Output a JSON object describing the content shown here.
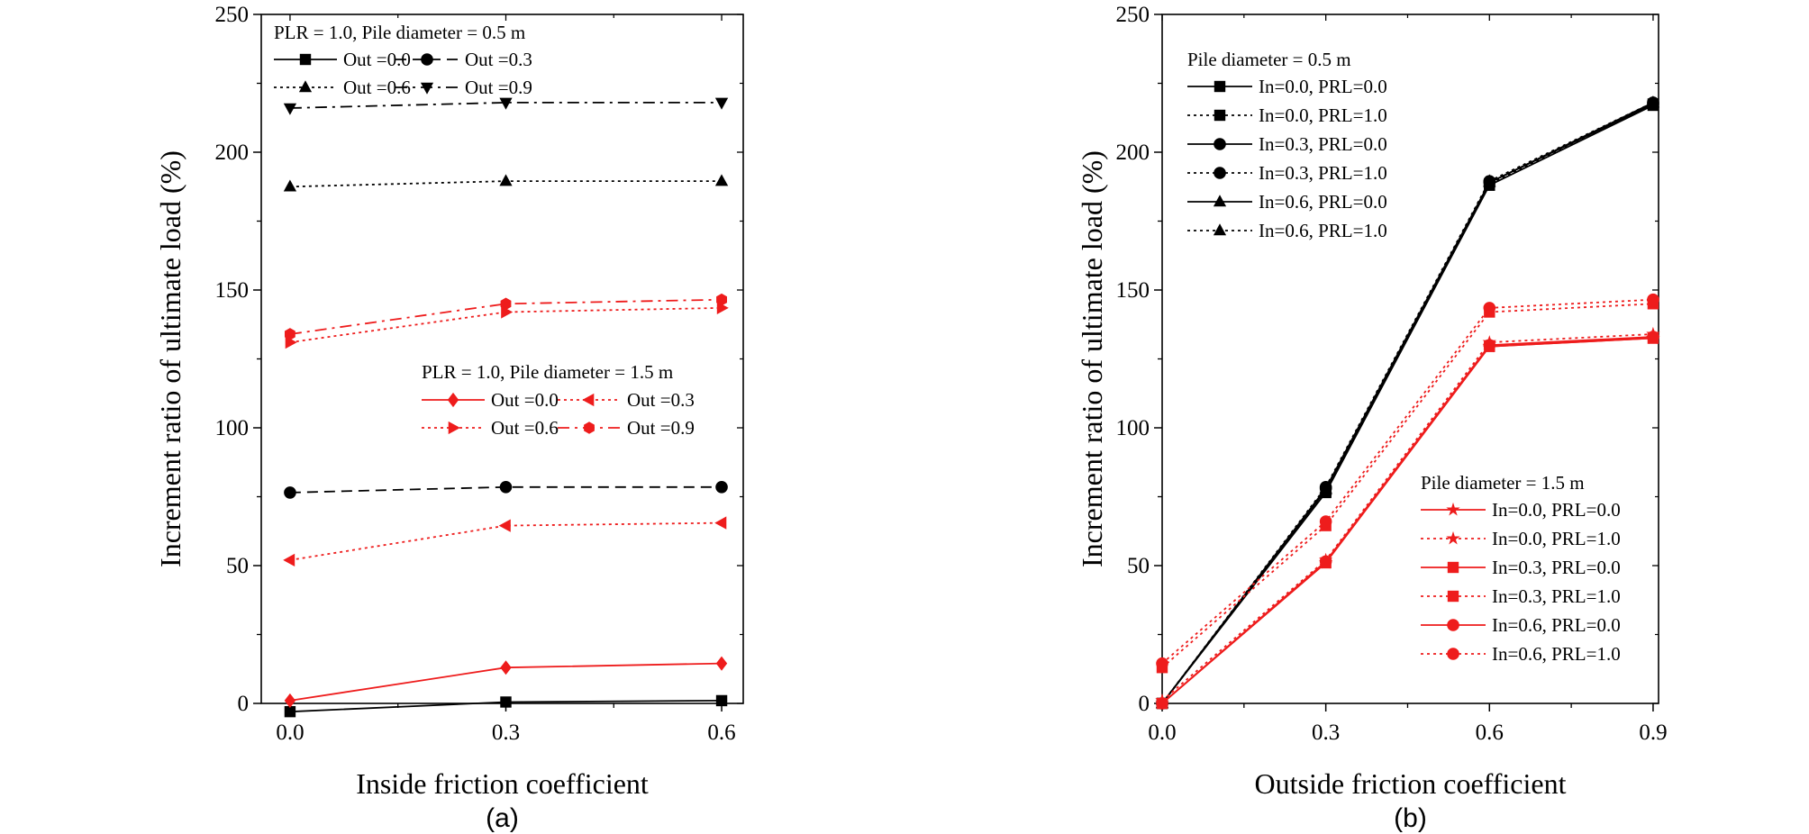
{
  "chart_data": [
    {
      "type": "line",
      "panel_label": "(a)",
      "xlabel": "Inside friction coefficient",
      "ylabel": "Increment ratio of ultimate load (%)",
      "xlim": [
        -0.04,
        0.63
      ],
      "ylim": [
        0,
        250
      ],
      "x_ticks": [
        "0.0",
        "0.3",
        "0.6"
      ],
      "y_ticks": [
        "0",
        "50",
        "100",
        "150",
        "200",
        "250"
      ],
      "legend_groups": [
        {
          "title": "PLR = 1.0,  Pile diameter = 0.5 m",
          "placement": "top-left"
        },
        {
          "title": "PLR = 1.0, Pile diameter = 1.5 m",
          "placement": "center-right"
        }
      ],
      "series": [
        {
          "name": "Out =0.0",
          "group": 0,
          "color": "#000000",
          "dash": "solid",
          "marker": "square",
          "x": [
            0.0,
            0.3,
            0.6
          ],
          "y": [
            -3,
            0.5,
            1
          ]
        },
        {
          "name": "Out =0.3",
          "group": 0,
          "color": "#000000",
          "dash": "dashed",
          "marker": "circle",
          "x": [
            0.0,
            0.3,
            0.6
          ],
          "y": [
            76.5,
            78.5,
            78.5
          ]
        },
        {
          "name": "Out =0.6",
          "group": 0,
          "color": "#000000",
          "dash": "dotted",
          "marker": "triangle-up",
          "x": [
            0.0,
            0.3,
            0.6
          ],
          "y": [
            187.5,
            189.5,
            189.5
          ]
        },
        {
          "name": "Out =0.9",
          "group": 0,
          "color": "#000000",
          "dash": "dashdot",
          "marker": "triangle-down",
          "x": [
            0.0,
            0.3,
            0.6
          ],
          "y": [
            216,
            218,
            218
          ]
        },
        {
          "name": "Out =0.0",
          "group": 1,
          "color": "#ee1c1c",
          "dash": "solid",
          "marker": "diamond",
          "x": [
            0.0,
            0.3,
            0.6
          ],
          "y": [
            1,
            13,
            14.5
          ]
        },
        {
          "name": "Out =0.3",
          "group": 1,
          "color": "#ee1c1c",
          "dash": "dotted",
          "marker": "triangle-left",
          "x": [
            0.0,
            0.3,
            0.6
          ],
          "y": [
            52,
            64.5,
            65.5
          ]
        },
        {
          "name": "Out =0.6",
          "group": 1,
          "color": "#ee1c1c",
          "dash": "dotted",
          "marker": "triangle-right",
          "x": [
            0.0,
            0.3,
            0.6
          ],
          "y": [
            131,
            142,
            143.5
          ]
        },
        {
          "name": "Out =0.9",
          "group": 1,
          "color": "#ee1c1c",
          "dash": "dashdot",
          "marker": "hexagon",
          "x": [
            0.0,
            0.3,
            0.6
          ],
          "y": [
            134,
            145,
            146.5
          ]
        }
      ]
    },
    {
      "type": "line",
      "panel_label": "(b)",
      "xlabel": "Outside friction coefficient",
      "ylabel": "Increment ratio of ultimate load (%)",
      "xlim": [
        0.0,
        0.91
      ],
      "ylim": [
        0,
        250
      ],
      "x_ticks": [
        "0.0",
        "0.3",
        "0.6",
        "0.9"
      ],
      "y_ticks": [
        "0",
        "50",
        "100",
        "150",
        "200",
        "250"
      ],
      "legend_groups": [
        {
          "title": "Pile diameter = 0.5 m",
          "placement": "top-left"
        },
        {
          "title": "Pile diameter = 1.5 m",
          "placement": "bottom-right"
        }
      ],
      "series": [
        {
          "name": "In=0.0, PRL=0.0",
          "group": 0,
          "color": "#000000",
          "dash": "solid",
          "marker": "square",
          "x": [
            0.0,
            0.3,
            0.6,
            0.9
          ],
          "y": [
            0,
            76.5,
            188,
            217
          ]
        },
        {
          "name": "In=0.0, PRL=1.0",
          "group": 0,
          "color": "#000000",
          "dash": "dotted",
          "marker": "square",
          "x": [
            0.0,
            0.3,
            0.6,
            0.9
          ],
          "y": [
            0,
            77,
            188.5,
            217.5
          ]
        },
        {
          "name": "In=0.3, PRL=0.0",
          "group": 0,
          "color": "#000000",
          "dash": "solid",
          "marker": "circle",
          "x": [
            0.0,
            0.3,
            0.6,
            0.9
          ],
          "y": [
            0,
            78,
            189,
            217.5
          ]
        },
        {
          "name": "In=0.3, PRL=1.0",
          "group": 0,
          "color": "#000000",
          "dash": "dotted",
          "marker": "circle",
          "x": [
            0.0,
            0.3,
            0.6,
            0.9
          ],
          "y": [
            0,
            78.5,
            189.5,
            218
          ]
        },
        {
          "name": "In=0.6, PRL=0.0",
          "group": 0,
          "color": "#000000",
          "dash": "solid",
          "marker": "triangle-up",
          "x": [
            0.0,
            0.3,
            0.6,
            0.9
          ],
          "y": [
            0,
            77.5,
            189,
            218
          ]
        },
        {
          "name": "In=0.6, PRL=1.0",
          "group": 0,
          "color": "#000000",
          "dash": "dotted",
          "marker": "triangle-up",
          "x": [
            0.0,
            0.3,
            0.6,
            0.9
          ],
          "y": [
            0,
            78,
            189.5,
            218
          ]
        },
        {
          "name": "In=0.0, PRL=0.0",
          "group": 1,
          "color": "#ee1c1c",
          "dash": "solid",
          "marker": "star",
          "x": [
            0.0,
            0.3,
            0.6,
            0.9
          ],
          "y": [
            0,
            51,
            129.5,
            132.5
          ]
        },
        {
          "name": "In=0.0, PRL=1.0",
          "group": 1,
          "color": "#ee1c1c",
          "dash": "dotted",
          "marker": "star",
          "x": [
            0.0,
            0.3,
            0.6,
            0.9
          ],
          "y": [
            1,
            52,
            131,
            134
          ]
        },
        {
          "name": "In=0.3, PRL=0.0",
          "group": 1,
          "color": "#ee1c1c",
          "dash": "solid",
          "marker": "square",
          "x": [
            0.0,
            0.3,
            0.6,
            0.9
          ],
          "y": [
            0,
            51,
            129.5,
            132.5
          ]
        },
        {
          "name": "In=0.3, PRL=1.0",
          "group": 1,
          "color": "#ee1c1c",
          "dash": "dotted",
          "marker": "square",
          "x": [
            0.0,
            0.3,
            0.6,
            0.9
          ],
          "y": [
            13,
            64.5,
            142,
            145
          ]
        },
        {
          "name": "In=0.6, PRL=0.0",
          "group": 1,
          "color": "#ee1c1c",
          "dash": "solid",
          "marker": "circle",
          "x": [
            0.0,
            0.3,
            0.6,
            0.9
          ],
          "y": [
            0,
            51.5,
            130,
            133
          ]
        },
        {
          "name": "In=0.6, PRL=1.0",
          "group": 1,
          "color": "#ee1c1c",
          "dash": "dotted",
          "marker": "circle",
          "x": [
            0.0,
            0.3,
            0.6,
            0.9
          ],
          "y": [
            14.5,
            66,
            143.5,
            146.5
          ]
        }
      ]
    }
  ]
}
